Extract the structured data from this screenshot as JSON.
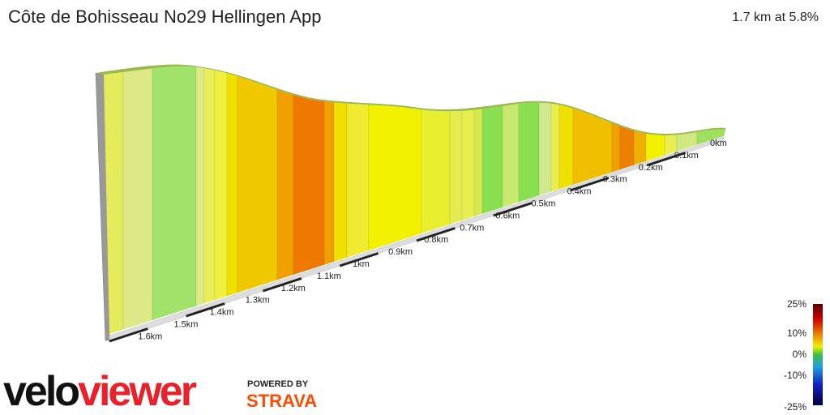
{
  "header": {
    "title": "Côte de Bohisseau No29 Hellingen App",
    "summary": "1.7 km at 5.8%"
  },
  "distance_labels": [
    "0km",
    "0.1km",
    "0.2km",
    "0.3km",
    "0.4km",
    "0.5km",
    "0.6km",
    "0.7km",
    "0.8km",
    "0.9km",
    "1km",
    "1.1km",
    "1.2km",
    "1.3km",
    "1.4km",
    "1.5km",
    "1.6km"
  ],
  "gradient_legend": [
    "25%",
    "10%",
    "0%",
    "-10%",
    "-25%"
  ],
  "logo": {
    "velo": "velo",
    "viewer": "viewer",
    "powered_by": "POWERED BY",
    "strava": "STRAVA"
  }
}
